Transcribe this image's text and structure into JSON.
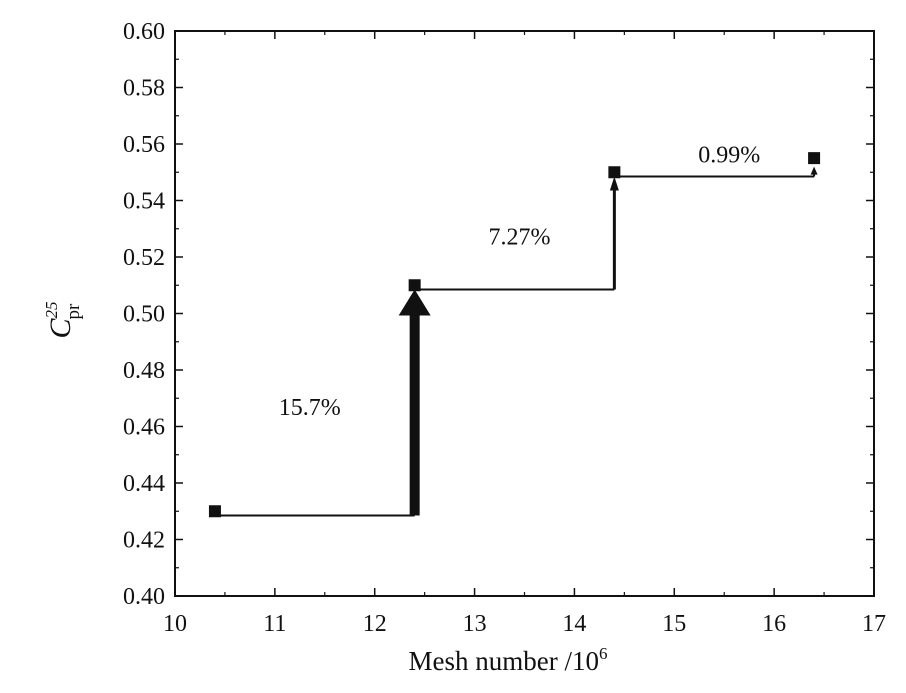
{
  "chart_data": {
    "type": "line",
    "xlabel": "Mesh number /10",
    "xlabel_superscript": "6",
    "ylabel_main": "C",
    "ylabel_superscript": "25",
    "ylabel_subscript": "pr",
    "xlim": [
      10,
      17
    ],
    "ylim": [
      0.4,
      0.6
    ],
    "x_ticks": [
      10,
      11,
      12,
      13,
      14,
      15,
      16,
      17
    ],
    "x_tick_labels": [
      "10",
      "11",
      "12",
      "13",
      "14",
      "15",
      "16",
      "17"
    ],
    "y_ticks": [
      0.4,
      0.42,
      0.44,
      0.46,
      0.48,
      0.5,
      0.52,
      0.54,
      0.56,
      0.58,
      0.6
    ],
    "y_tick_labels": [
      "0.40",
      "0.42",
      "0.44",
      "0.46",
      "0.48",
      "0.50",
      "0.52",
      "0.54",
      "0.56",
      "0.58",
      "0.60"
    ],
    "grid": false,
    "legend": "none",
    "marker": "square",
    "series": [
      {
        "x": [
          10.4,
          12.4,
          14.4,
          16.4
        ],
        "y": [
          0.43,
          0.51,
          0.55,
          0.555
        ]
      }
    ],
    "step_line": [
      {
        "x1": 10.4,
        "x2": 12.4,
        "y": 0.4285
      },
      {
        "x1": 12.4,
        "x2": 14.4,
        "y": 0.5085
      },
      {
        "x1": 14.4,
        "x2": 16.4,
        "y": 0.5485
      }
    ],
    "arrows": [
      {
        "x": 12.4,
        "y_from": 0.4285,
        "y_to": 0.5085,
        "label": "15.7%",
        "weight": "heavy"
      },
      {
        "x": 14.4,
        "y_from": 0.5085,
        "y_to": 0.5485,
        "label": "7.27%",
        "weight": "medium"
      },
      {
        "x": 16.4,
        "y_from": 0.5485,
        "y_to": 0.552,
        "label": "0.99%",
        "weight": "light"
      }
    ],
    "annotation_positions": [
      {
        "label": "15.7%",
        "x": 11.35,
        "y": 0.464
      },
      {
        "label": "7.27%",
        "x": 13.45,
        "y": 0.5245
      },
      {
        "label": "0.99%",
        "x": 15.55,
        "y": 0.5535
      }
    ],
    "colors": {
      "line": "#111111",
      "marker": "#111111",
      "axis": "#111111",
      "background": "#ffffff"
    }
  }
}
